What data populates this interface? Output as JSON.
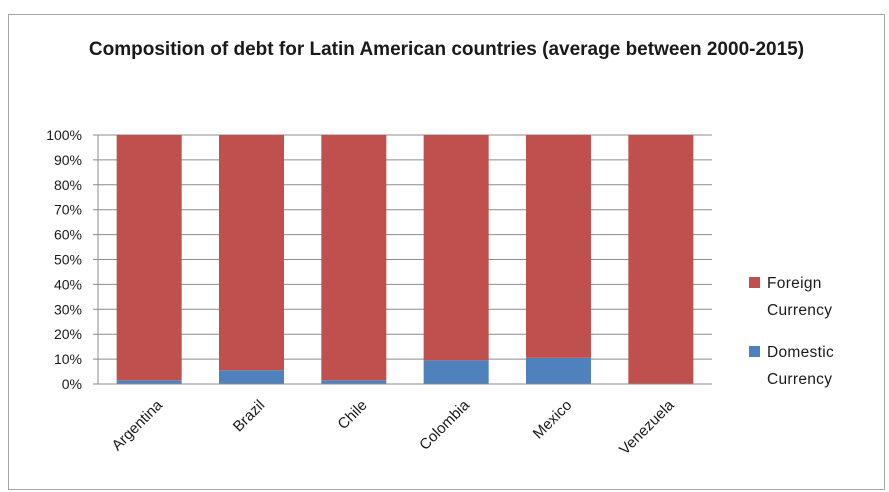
{
  "chart_data": {
    "type": "bar",
    "stacked": true,
    "title": "Composition of debt for Latin American countries (average between 2000-2015)",
    "categories": [
      "Argentina",
      "Brazil",
      "Chile",
      "Colombia",
      "Mexico",
      "Venezuela"
    ],
    "series": [
      {
        "name": "Domestic Currency",
        "color": "#4f81bd",
        "values": [
          1.5,
          5.5,
          1.5,
          9.5,
          10.5,
          0
        ]
      },
      {
        "name": "Foreign Currency",
        "color": "#c0504d",
        "values": [
          98.5,
          94.5,
          98.5,
          90.5,
          89.5,
          100
        ]
      }
    ],
    "yticks": [
      "0%",
      "10%",
      "20%",
      "30%",
      "40%",
      "50%",
      "60%",
      "70%",
      "80%",
      "90%",
      "100%"
    ],
    "ylim": [
      0,
      100
    ],
    "grid": true,
    "legend_position": "right",
    "legend": [
      {
        "lines": [
          "Foreign",
          "Currency"
        ],
        "color": "#c0504d"
      },
      {
        "lines": [
          "Domestic",
          "Currency"
        ],
        "color": "#4f81bd"
      }
    ]
  }
}
